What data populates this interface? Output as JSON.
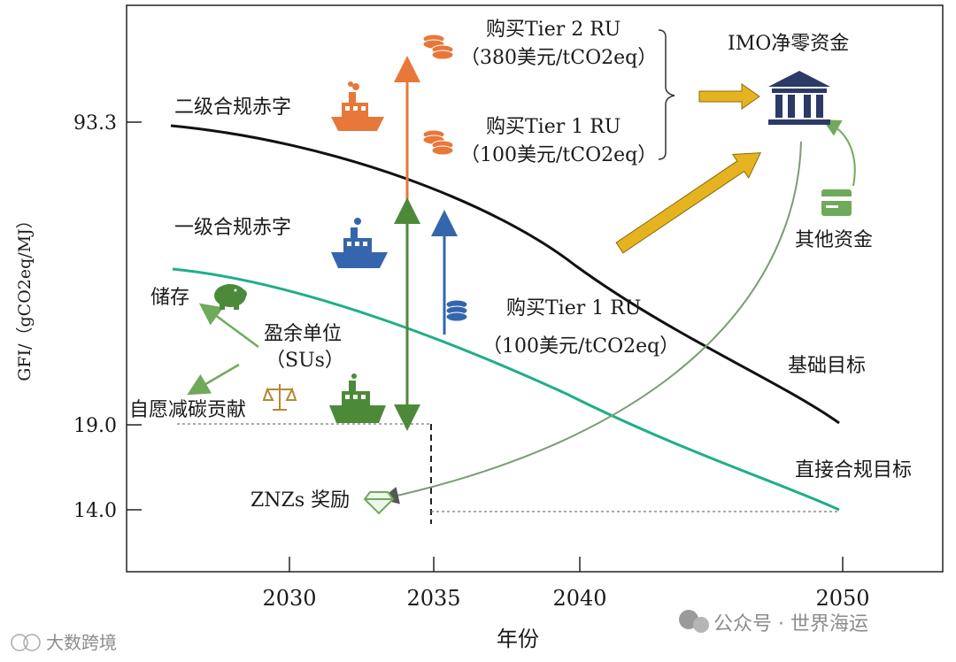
{
  "figure": {
    "y_axis_label": "GFI/（gCO2eq/MJ）",
    "x_axis_label": "年份",
    "y_ticks": [
      "93.3",
      "19.0",
      "14.0"
    ],
    "x_ticks": [
      "2030",
      "2035",
      "2040",
      "2050"
    ]
  },
  "labels": {
    "tier2_deficit": "二级合规赤字",
    "tier1_deficit": "一级合规赤字",
    "storage": "储存",
    "surplus_units": "盈余单位",
    "surplus_units_abbr": "（SUs）",
    "voluntary": "自愿减碳贡献",
    "znz_reward": "ZNZs 奖励",
    "buy_tier2": "购买Tier 2 RU",
    "buy_tier2_price": "（380美元/tCO2eq）",
    "buy_tier1_top": "购买Tier 1 RU",
    "buy_tier1_top_price": "（100美元/tCO2eq）",
    "buy_tier1_mid": "购买Tier 1 RU",
    "buy_tier1_mid_price": "（100美元/tCO2eq）",
    "imo_fund": "IMO净零资金",
    "other_funds": "其他资金",
    "base_target": "基础目标",
    "direct_target": "直接合规目标"
  },
  "watermarks": {
    "left": "大数跨境",
    "right": "公众号 · 世界海运"
  },
  "colors": {
    "base_line": "#111111",
    "direct_line": "#1fae8a",
    "orange": "#e8773a",
    "blue": "#3566ad",
    "green": "#4c8a3a",
    "gold": "#e6b320",
    "bank": "#2b3a66",
    "olive_curve": "#7d9a78"
  }
}
